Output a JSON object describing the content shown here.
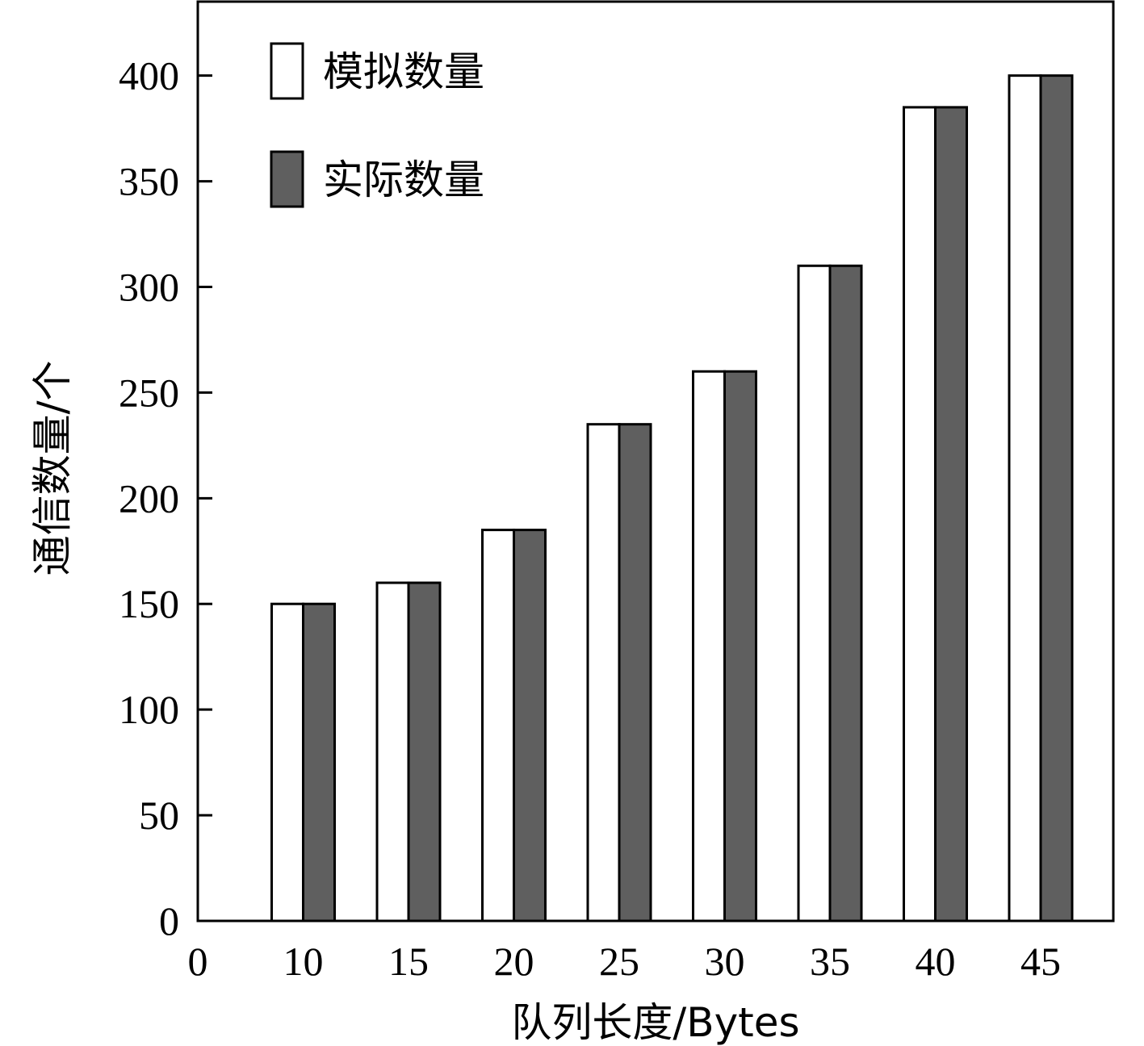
{
  "chart_data": {
    "type": "bar",
    "title": "",
    "xlabel": "队列长度/Bytes",
    "ylabel": "通信数量/个",
    "x_ticks": [
      0,
      10,
      15,
      20,
      25,
      30,
      35,
      40,
      45
    ],
    "categories": [
      10,
      15,
      20,
      25,
      30,
      35,
      40,
      45
    ],
    "y_ticks": [
      0,
      50,
      100,
      150,
      200,
      250,
      300,
      350,
      400
    ],
    "ylim": [
      0,
      435
    ],
    "grid": false,
    "legend_position": "top-left",
    "series": [
      {
        "name": "模拟数量",
        "color": "#ffffff",
        "values": [
          150,
          160,
          185,
          235,
          260,
          310,
          385,
          400
        ]
      },
      {
        "name": "实际数量",
        "color": "#5f5f5f",
        "values": [
          150,
          160,
          185,
          235,
          260,
          310,
          385,
          400
        ]
      }
    ]
  }
}
